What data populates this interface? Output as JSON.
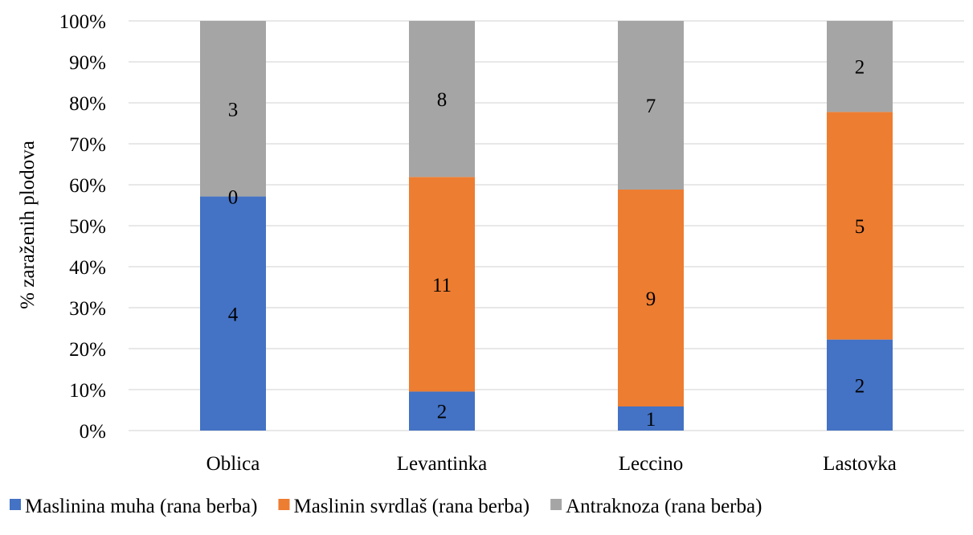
{
  "chart_data": {
    "type": "bar",
    "stacked": true,
    "percent_stacked": true,
    "categories": [
      "Oblica",
      "Levantinka",
      "Leccino",
      "Lastovka"
    ],
    "series": [
      {
        "name": "Maslinina muha  (rana berba)",
        "values": [
          4,
          2,
          1,
          2
        ],
        "color": "#4472C4"
      },
      {
        "name": "Maslinin svrdlaš (rana berba)",
        "values": [
          0,
          11,
          9,
          5
        ],
        "color": "#ED7D31"
      },
      {
        "name": "Antraknoza (rana berba)",
        "values": [
          3,
          8,
          7,
          2
        ],
        "color": "#A5A5A5"
      }
    ],
    "ylabel": "%  zaraženih plodova",
    "xlabel": "",
    "title": "",
    "ylim": [
      0,
      100
    ],
    "yticks": [
      "0%",
      "10%",
      "20%",
      "30%",
      "40%",
      "50%",
      "60%",
      "70%",
      "80%",
      "90%",
      "100%"
    ],
    "grid": true,
    "legend_position": "bottom",
    "data_labels": true,
    "gridline_color": "#D9D9D9"
  }
}
